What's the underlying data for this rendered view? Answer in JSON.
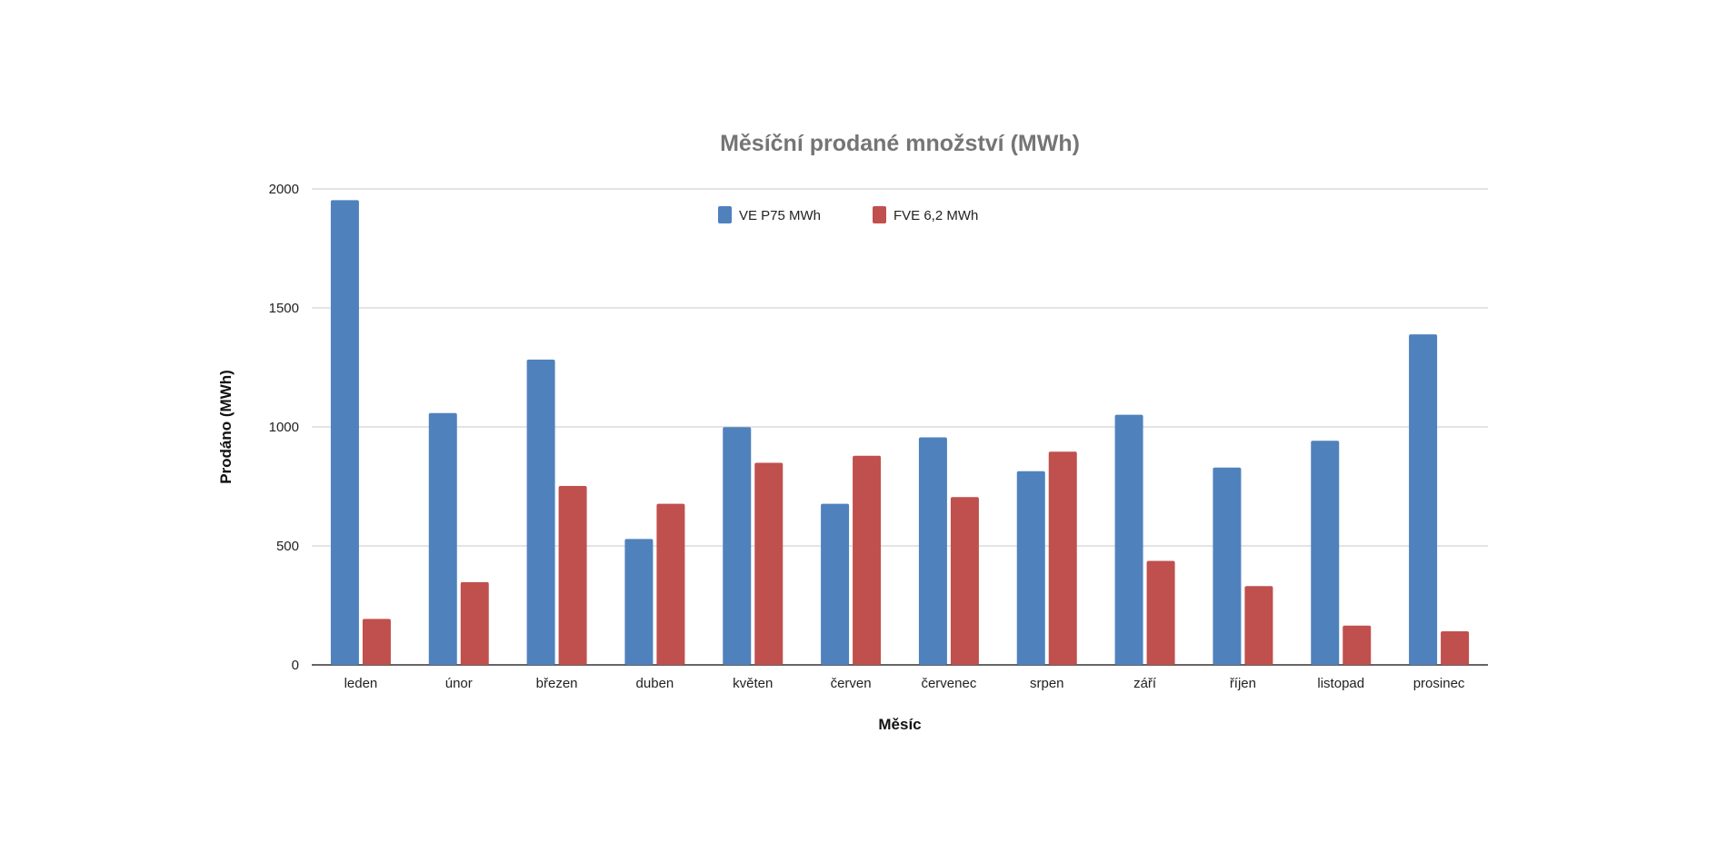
{
  "chart_data": {
    "type": "bar",
    "title": "Měsíční prodané množství (MWh)",
    "xlabel": "Měsíc",
    "ylabel": "Prodáno (MWh)",
    "ylim": [
      0,
      2000
    ],
    "yticks": [
      0,
      500,
      1000,
      1500,
      2000
    ],
    "grid": true,
    "legend_position": "top-center",
    "categories": [
      "leden",
      "únor",
      "březen",
      "duben",
      "květen",
      "červen",
      "červenec",
      "srpen",
      "září",
      "říjen",
      "listopad",
      "prosinec"
    ],
    "series": [
      {
        "name": "VE P75 MWh",
        "color": "#4f81bd",
        "values": [
          1953,
          1058,
          1283,
          529,
          999,
          677,
          956,
          814,
          1051,
          829,
          942,
          1389
        ]
      },
      {
        "name": "FVE 6,2 MWh",
        "color": "#c0504d",
        "values": [
          193,
          348,
          752,
          677,
          849,
          879,
          705,
          896,
          437,
          331,
          165,
          141
        ]
      }
    ]
  }
}
